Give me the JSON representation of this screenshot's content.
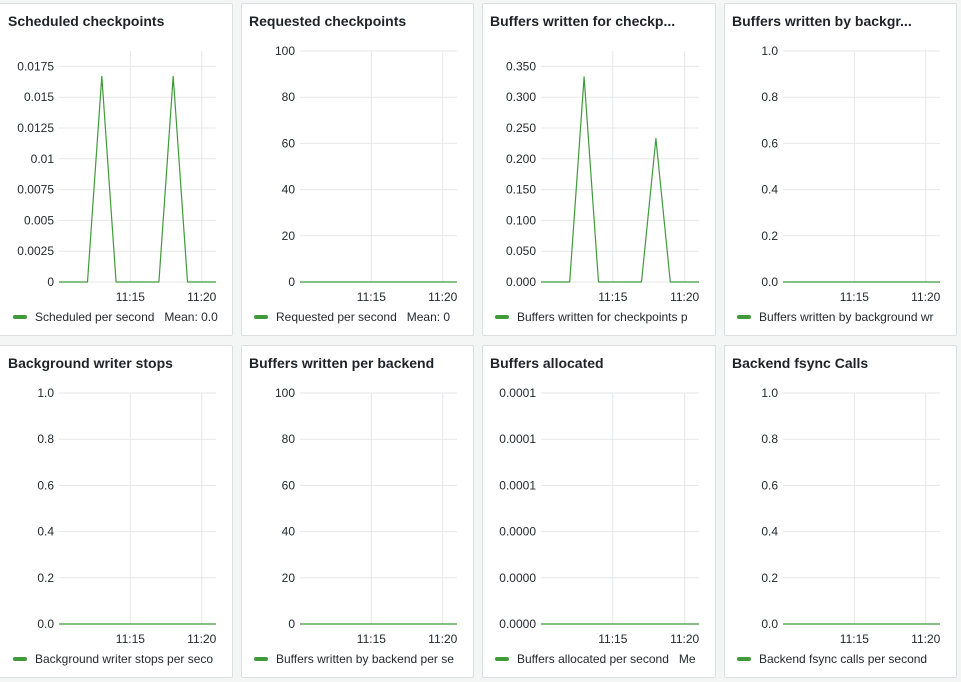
{
  "colors": {
    "series": "#3f9a38",
    "grid": "#e6e7e9",
    "axis": "#d0d3d6"
  },
  "panels": [
    {
      "title": "Scheduled checkpoints",
      "legend": {
        "label": "Scheduled per second",
        "mean": "Mean: 0.0"
      },
      "chart_data": {
        "type": "line",
        "y_ticks": [
          "0.0175",
          "0.015",
          "0.0125",
          "0.01",
          "0.0075",
          "0.005",
          "0.0025",
          "0"
        ],
        "ylim": [
          0,
          0.01875
        ],
        "x_ticks": [
          "11:15",
          "11:20"
        ],
        "x": [
          "11:10",
          "11:11",
          "11:12",
          "11:13",
          "11:14",
          "11:15",
          "11:16",
          "11:17",
          "11:18",
          "11:19",
          "11:20",
          "11:21"
        ],
        "series": [
          {
            "values": [
              0,
              0,
              0,
              0.0167,
              0,
              0,
              0,
              0,
              0.0167,
              0,
              0,
              0
            ]
          }
        ]
      }
    },
    {
      "title": "Requested checkpoints",
      "legend": {
        "label": "Requested per second",
        "mean": "Mean: 0"
      },
      "chart_data": {
        "type": "line",
        "y_ticks": [
          "100",
          "80",
          "60",
          "40",
          "20",
          "0"
        ],
        "ylim": [
          0,
          100
        ],
        "x_ticks": [
          "11:15",
          "11:20"
        ],
        "x": [
          "11:10",
          "11:21"
        ],
        "series": [
          {
            "values": [
              0,
              0
            ]
          }
        ]
      }
    },
    {
      "title": "Buffers written for checkp...",
      "legend": {
        "label": "Buffers written for checkpoints p",
        "mean": ""
      },
      "chart_data": {
        "type": "line",
        "y_ticks": [
          "0.350",
          "0.300",
          "0.250",
          "0.200",
          "0.150",
          "0.100",
          "0.050",
          "0.000"
        ],
        "ylim": [
          0,
          0.375
        ],
        "x_ticks": [
          "11:15",
          "11:20"
        ],
        "x": [
          "11:10",
          "11:11",
          "11:12",
          "11:13",
          "11:14",
          "11:15",
          "11:16",
          "11:17",
          "11:18",
          "11:19",
          "11:20",
          "11:21"
        ],
        "series": [
          {
            "values": [
              0,
              0,
              0,
              0.333,
              0,
              0,
              0,
              0,
              0.233,
              0,
              0,
              0
            ]
          }
        ]
      }
    },
    {
      "title": "Buffers written by backgr...",
      "legend": {
        "label": "Buffers written by background wr",
        "mean": ""
      },
      "chart_data": {
        "type": "line",
        "y_ticks": [
          "1.0",
          "0.8",
          "0.6",
          "0.4",
          "0.2",
          "0.0"
        ],
        "ylim": [
          0,
          1
        ],
        "x_ticks": [
          "11:15",
          "11:20"
        ],
        "x": [
          "11:10",
          "11:21"
        ],
        "series": [
          {
            "values": [
              0,
              0
            ]
          }
        ]
      }
    },
    {
      "title": "Background writer stops",
      "legend": {
        "label": "Background writer stops per seco",
        "mean": ""
      },
      "chart_data": {
        "type": "line",
        "y_ticks": [
          "1.0",
          "0.8",
          "0.6",
          "0.4",
          "0.2",
          "0.0"
        ],
        "ylim": [
          0,
          1
        ],
        "x_ticks": [
          "11:15",
          "11:20"
        ],
        "x": [
          "11:10",
          "11:21"
        ],
        "series": [
          {
            "values": [
              0,
              0
            ]
          }
        ]
      }
    },
    {
      "title": "Buffers written per backend",
      "legend": {
        "label": "Buffers written by backend per se",
        "mean": ""
      },
      "chart_data": {
        "type": "line",
        "y_ticks": [
          "100",
          "80",
          "60",
          "40",
          "20",
          "0"
        ],
        "ylim": [
          0,
          100
        ],
        "x_ticks": [
          "11:15",
          "11:20"
        ],
        "x": [
          "11:10",
          "11:21"
        ],
        "series": [
          {
            "values": [
              0,
              0
            ]
          }
        ]
      }
    },
    {
      "title": "Buffers allocated",
      "legend": {
        "label": "Buffers allocated per second",
        "mean": "Me"
      },
      "chart_data": {
        "type": "line",
        "y_ticks": [
          "0.0001",
          "0.0001",
          "0.0001",
          "0.0000",
          "0.0000",
          "0.0000"
        ],
        "ylim": [
          0,
          0.0001
        ],
        "x_ticks": [
          "11:15",
          "11:20"
        ],
        "x": [
          "11:10",
          "11:21"
        ],
        "series": [
          {
            "values": [
              0,
              0
            ]
          }
        ]
      }
    },
    {
      "title": "Backend fsync Calls",
      "legend": {
        "label": "Backend fsync calls per second",
        "mean": ""
      },
      "chart_data": {
        "type": "line",
        "y_ticks": [
          "1.0",
          "0.8",
          "0.6",
          "0.4",
          "0.2",
          "0.0"
        ],
        "ylim": [
          0,
          1
        ],
        "x_ticks": [
          "11:15",
          "11:20"
        ],
        "x": [
          "11:10",
          "11:21"
        ],
        "series": [
          {
            "values": [
              0,
              0
            ]
          }
        ]
      }
    }
  ]
}
